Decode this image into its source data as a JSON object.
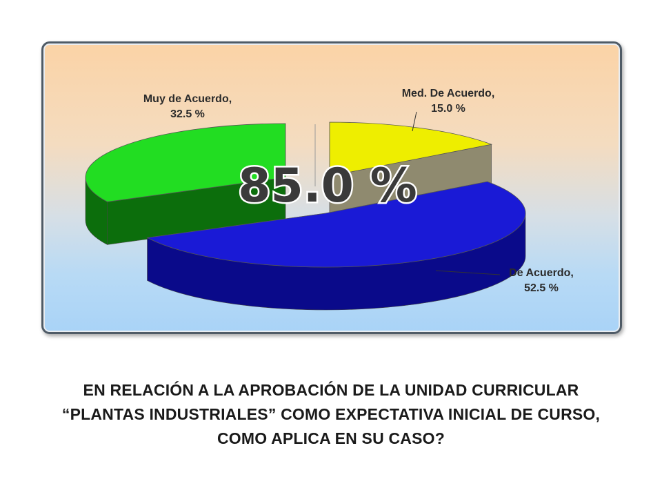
{
  "chart_data": {
    "type": "pie",
    "slices": [
      {
        "label": "Med. De Acuerdo,",
        "value": 15.0,
        "value_text": "15.0 %",
        "color": "#eeee00",
        "side": "#8f8a6f"
      },
      {
        "label": "De Acuerdo,",
        "value": 52.5,
        "value_text": "52.5 %",
        "color": "#1a1ad6",
        "side": "#0a0a8a"
      },
      {
        "label": "Muy de Acuerdo,",
        "value": 32.5,
        "value_text": "32.5 %",
        "color": "#22dd22",
        "side": "#0c6e0c"
      }
    ],
    "overlay_text": "85.0 %"
  },
  "caption": {
    "lines": [
      "EN RELACIÓN A LA APROBACIÓN DE LA UNIDAD CURRICULAR",
      "“PLANTAS INDUSTRIALES” COMO EXPECTATIVA INICIAL DE CURSO,",
      "COMO APLICA  EN SU CASO?"
    ]
  }
}
